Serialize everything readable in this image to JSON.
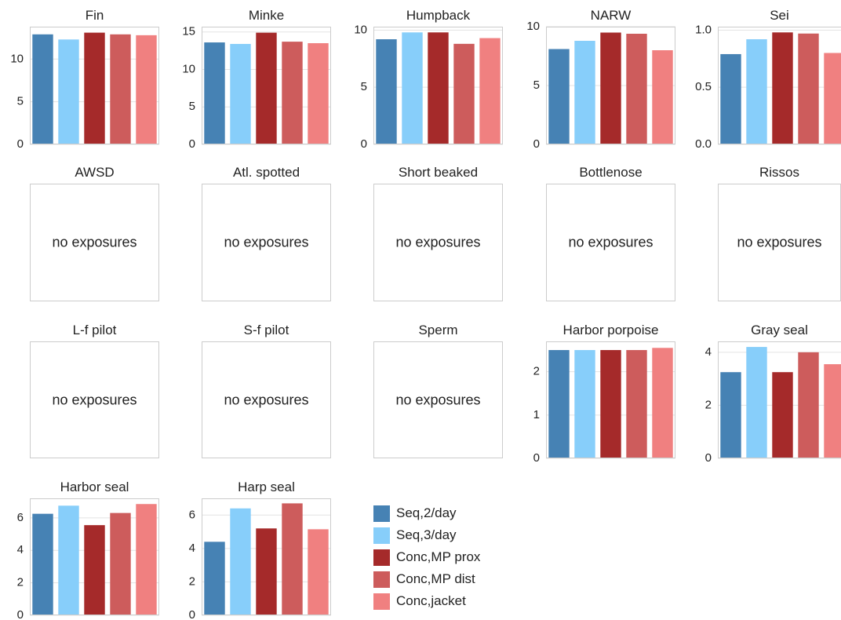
{
  "chart_data": {
    "type": "bar",
    "categories": [
      "Seq,2/day",
      "Seq,3/day",
      "Conc,MP prox",
      "Conc,MP dist",
      "Conc,jacket"
    ],
    "colors": [
      "#4682b4",
      "#87cefa",
      "#a52a2a",
      "#cd5c5c",
      "#f08080"
    ],
    "legend_position": "bottom-center",
    "grid": true,
    "empty_label": "no exposures",
    "panels": [
      {
        "title": "Fin",
        "values": [
          12.9,
          12.3,
          13.1,
          12.9,
          12.8
        ],
        "ylim": [
          0,
          13.8
        ],
        "yticks": [
          0,
          5,
          10
        ]
      },
      {
        "title": "Minke",
        "values": [
          13.6,
          13.4,
          14.9,
          13.7,
          13.5
        ],
        "ylim": [
          0,
          15.7
        ],
        "yticks": [
          0,
          5,
          10,
          15
        ]
      },
      {
        "title": "Humpback",
        "values": [
          9.2,
          9.8,
          9.8,
          8.8,
          9.3
        ],
        "ylim": [
          0,
          10.3
        ],
        "yticks": [
          0,
          5,
          10
        ]
      },
      {
        "title": "NARW",
        "values": [
          8.1,
          8.8,
          9.5,
          9.4,
          8.0
        ],
        "ylim": [
          0,
          10.0
        ],
        "yticks": [
          0,
          5,
          10
        ]
      },
      {
        "title": "Sei",
        "values": [
          0.79,
          0.92,
          0.98,
          0.97,
          0.8
        ],
        "ylim": [
          0,
          1.03
        ],
        "yticks": [
          "0.0",
          "0.5",
          "1.0"
        ]
      },
      {
        "title": "AWSD",
        "empty": true
      },
      {
        "title": "Atl. spotted",
        "empty": true
      },
      {
        "title": "Short beaked",
        "empty": true
      },
      {
        "title": "Bottlenose",
        "empty": true
      },
      {
        "title": "Rissos",
        "empty": true
      },
      {
        "title": "L-f pilot",
        "empty": true
      },
      {
        "title": "S-f pilot",
        "empty": true
      },
      {
        "title": "Sperm",
        "empty": true
      },
      {
        "title": "Harbor porpoise",
        "values": [
          2.5,
          2.5,
          2.5,
          2.5,
          2.55
        ],
        "ylim": [
          0,
          2.7
        ],
        "yticks": [
          0,
          1,
          2
        ]
      },
      {
        "title": "Gray seal",
        "values": [
          3.25,
          4.2,
          3.25,
          4.0,
          3.55
        ],
        "ylim": [
          0,
          4.41
        ],
        "yticks": [
          0,
          2,
          4
        ]
      },
      {
        "title": "Harbor seal",
        "values": [
          6.25,
          6.75,
          5.55,
          6.3,
          6.85
        ],
        "ylim": [
          0,
          7.2
        ],
        "yticks": [
          0,
          2,
          4,
          6
        ]
      },
      {
        "title": "Harp seal",
        "values": [
          4.4,
          6.4,
          5.2,
          6.7,
          5.15
        ],
        "ylim": [
          0,
          7.0
        ],
        "yticks": [
          0,
          2,
          4,
          6
        ]
      }
    ]
  }
}
